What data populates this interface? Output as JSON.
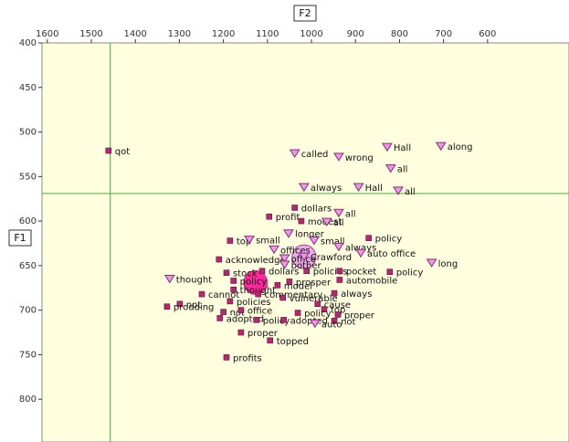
{
  "chart_data": {
    "type": "scatter",
    "xlabel": "F2",
    "ylabel": "F1",
    "xlim": [
      1612,
      415
    ],
    "ylim": [
      400,
      848
    ],
    "xticks": [
      1600,
      1500,
      1400,
      1300,
      1200,
      1100,
      1000,
      900,
      800,
      700,
      600
    ],
    "yticks": [
      400,
      450,
      500,
      550,
      600,
      650,
      700,
      750,
      800
    ],
    "crosshair": {
      "x": 1457,
      "y": 569
    },
    "background": "#ffffe0",
    "series": [
      {
        "marker": "square",
        "color": "#b02a6e",
        "x": [
          1461,
          1038,
          1096,
          1023,
          1185,
          870,
          1210,
          1193,
          1112,
          1011,
          936,
          822,
          936,
          1177,
          1177,
          1050,
          1077,
          948,
          948,
          1299,
          1249,
          1185,
          1200,
          1160,
          1121,
          1065,
          986,
          971,
          1031,
          940,
          1328,
          1208,
          1125,
          1063,
          1160,
          1094,
          1193
        ],
        "y": [
          521,
          585,
          595,
          600,
          622,
          619,
          643,
          658,
          656,
          656,
          656,
          657,
          666,
          667,
          677,
          668,
          672,
          681,
          712,
          693,
          682,
          690,
          702,
          700,
          682,
          686,
          693,
          699,
          703,
          705,
          696,
          709,
          711,
          711,
          725,
          734,
          753
        ],
        "labels": [
          "qot",
          "dollars",
          "profit",
          "modest",
          "top",
          "policy",
          "acknowledge",
          "stock",
          "dollars",
          "policies",
          "pocket",
          "policy",
          "automobile",
          "policy",
          "thought",
          "prosper",
          "model",
          "always",
          "not",
          "not",
          "cannot",
          "policies",
          "not",
          "office",
          "commentary",
          "vulnerable",
          "cause",
          "top",
          "policy",
          "proper",
          "prodding",
          "adopted",
          "policy",
          "adopted",
          "proper",
          "topped",
          "profits"
        ]
      },
      {
        "marker": "triangle",
        "color": "#e89be0",
        "x": [
          706,
          828,
          1038,
          938,
          820,
          1017,
          893,
          803,
          938,
          965,
          1052,
          1141,
          994,
          938,
          1085,
          1061,
          1061,
          727,
          1322,
          888,
          992,
          1017
        ],
        "y": [
          516,
          517,
          524,
          528,
          541,
          562,
          562,
          566,
          591,
          601,
          614,
          621,
          622,
          629,
          632,
          642,
          649,
          647,
          665,
          636,
          715,
          640
        ],
        "labels": [
          "along",
          "Hall",
          "called",
          "wrong",
          "all",
          "always",
          "Hall",
          "all",
          "all",
          "all",
          "longer",
          "small",
          "small",
          "always",
          "offices",
          "office",
          "bother",
          "long",
          "thought",
          "auto office",
          "auto",
          "Crawford"
        ]
      },
      {
        "marker": "circle",
        "colors": [
          "#ff1493",
          "#e8a0e8"
        ],
        "x": [
          1127,
          1017
        ],
        "y": [
          669,
          640
        ]
      }
    ]
  }
}
